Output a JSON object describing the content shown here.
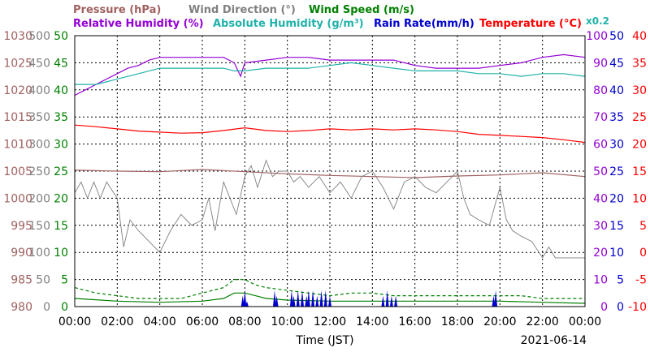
{
  "chart_data": {
    "type": "line",
    "xlabel": "Time (JST)",
    "date": "2021-06-14",
    "x_ticks": [
      "00:00",
      "02:00",
      "04:00",
      "06:00",
      "08:00",
      "10:00",
      "12:00",
      "14:00",
      "16:00",
      "18:00",
      "20:00",
      "22:00",
      "00:00"
    ],
    "axes": {
      "pressure": {
        "label": "Pressure (hPa)",
        "color": "#a06060",
        "range": [
          980,
          1030
        ],
        "ticks": [
          "980",
          "985",
          "990",
          "995",
          "1000",
          "1005",
          "1010",
          "1015",
          "1020",
          "1025",
          "1030"
        ]
      },
      "wind_direction": {
        "label": "Wind Direction (°)",
        "color": "#808080",
        "range": [
          0,
          500
        ],
        "ticks": [
          "0",
          "50",
          "100",
          "150",
          "200",
          "250",
          "300",
          "350",
          "400",
          "450",
          "500"
        ]
      },
      "wind_speed": {
        "label": "Wind Speed (m/s)",
        "color": "#008000",
        "range": [
          0,
          50
        ],
        "ticks": [
          "0",
          "5",
          "10",
          "15",
          "20",
          "25",
          "30",
          "35",
          "40",
          "45",
          "50"
        ]
      },
      "humidity": {
        "label": "Relative Humidity (%)",
        "color": "#9400d3",
        "range": [
          0,
          100
        ],
        "ticks": [
          "0",
          "10",
          "20",
          "30",
          "40",
          "50",
          "60",
          "70",
          "80",
          "90",
          "100"
        ]
      },
      "abs_humidity": {
        "label": "Absolute Humidity (g/m³)",
        "color": "#20b2aa",
        "scale_note": "x0.2"
      },
      "rain_rate": {
        "label": "Rain Rate(mm/h)",
        "color": "#0000cd",
        "range": [
          0,
          50
        ],
        "ticks": [
          "0",
          "5",
          "10",
          "15",
          "20",
          "25",
          "30",
          "35",
          "40",
          "45",
          "50"
        ]
      },
      "temperature": {
        "label": "Temperature (°C)",
        "color": "#ff0000",
        "range": [
          -10,
          40
        ],
        "ticks": [
          "-10",
          "-5",
          "0",
          "5",
          "10",
          "15",
          "20",
          "25",
          "30",
          "35",
          "40"
        ]
      }
    },
    "series": [
      {
        "name": "Relative Humidity",
        "axis": "humidity",
        "color": "#9400d3",
        "x": [
          0,
          0.5,
          1,
          1.5,
          2,
          2.5,
          3,
          3.5,
          4,
          5,
          6,
          7,
          7.5,
          7.8,
          8,
          9,
          10,
          11,
          12,
          13,
          14,
          15,
          16,
          17,
          18,
          19,
          20,
          21,
          22,
          23,
          24
        ],
        "y": [
          78,
          80,
          82,
          84,
          86,
          88,
          89,
          91,
          92,
          92,
          92,
          92,
          90,
          85,
          90,
          91,
          92,
          92,
          91,
          91,
          91,
          91,
          89,
          88,
          88,
          88,
          89,
          90,
          92,
          93,
          92
        ]
      },
      {
        "name": "Absolute Humidity",
        "axis": "humidity",
        "color": "#20b2aa",
        "x": [
          0,
          1,
          2,
          3,
          4,
          5,
          6,
          7,
          7.5,
          8,
          9,
          10,
          11,
          12,
          13,
          14,
          15,
          16,
          17,
          18,
          19,
          20,
          21,
          22,
          23,
          24
        ],
        "y": [
          82,
          82,
          84,
          86,
          88,
          88,
          88,
          88,
          87,
          87,
          88,
          88,
          88,
          89,
          90,
          89,
          88,
          87,
          87,
          87,
          86,
          86,
          85,
          86,
          86,
          85
        ]
      },
      {
        "name": "Temperature",
        "axis": "temperature",
        "color": "#ff0000",
        "x": [
          0,
          1,
          2,
          3,
          4,
          5,
          6,
          7,
          8,
          9,
          10,
          11,
          12,
          13,
          14,
          15,
          16,
          17,
          18,
          19,
          20,
          21,
          22,
          23,
          24
        ],
        "y": [
          23.5,
          23.2,
          22.8,
          22.4,
          22.2,
          22.0,
          22.1,
          22.5,
          23.0,
          22.5,
          22.3,
          22.5,
          22.8,
          22.6,
          22.8,
          22.6,
          22.8,
          22.6,
          22.3,
          21.8,
          21.6,
          21.4,
          21.2,
          20.8,
          20.3
        ]
      },
      {
        "name": "Pressure",
        "axis": "pressure",
        "color": "#a06060",
        "x": [
          0,
          2,
          4,
          6,
          7,
          8,
          10,
          12,
          14,
          16,
          18,
          20,
          22,
          24
        ],
        "y": [
          1005.2,
          1005,
          1004.9,
          1005.3,
          1005.1,
          1004.9,
          1004.5,
          1004.2,
          1004.0,
          1003.8,
          1004.1,
          1004.3,
          1004.7,
          1004.0
        ]
      },
      {
        "name": "Wind Direction",
        "axis": "wind_direction",
        "color": "#808080",
        "x": [
          0,
          0.3,
          0.6,
          0.9,
          1.2,
          1.5,
          2,
          2.3,
          2.6,
          3,
          3.5,
          4,
          4.5,
          5,
          5.5,
          6,
          6.3,
          6.6,
          7,
          7.3,
          7.6,
          8,
          8.3,
          8.6,
          9,
          9.3,
          9.6,
          10,
          10.3,
          10.6,
          11,
          11.5,
          12,
          12.5,
          13,
          13.5,
          14,
          14.5,
          15,
          15.5,
          16,
          16.5,
          17,
          17.5,
          18,
          18.3,
          18.6,
          19,
          19.5,
          20,
          20.3,
          20.6,
          21,
          21.5,
          22,
          22.3,
          22.6,
          23,
          23.5,
          24
        ],
        "y": [
          210,
          230,
          200,
          230,
          200,
          230,
          200,
          110,
          160,
          140,
          120,
          100,
          140,
          170,
          150,
          160,
          200,
          140,
          230,
          200,
          170,
          240,
          260,
          220,
          270,
          240,
          250,
          250,
          230,
          240,
          220,
          240,
          210,
          230,
          200,
          240,
          250,
          220,
          180,
          230,
          240,
          220,
          210,
          230,
          250,
          200,
          170,
          160,
          150,
          220,
          160,
          140,
          130,
          120,
          90,
          110,
          90,
          90,
          90,
          90
        ]
      },
      {
        "name": "Wind Speed max",
        "axis": "wind_speed",
        "color": "#008000",
        "x": [
          0,
          1,
          2,
          3,
          4,
          5,
          6,
          7,
          7.5,
          8,
          8.5,
          9,
          10,
          11,
          12,
          13,
          14,
          15,
          16,
          17,
          18,
          19,
          20,
          21,
          22,
          23,
          24
        ],
        "y": [
          3.5,
          2.5,
          2,
          1.5,
          1.5,
          1.5,
          2.5,
          3.5,
          5,
          5,
          4,
          3.5,
          3,
          2.5,
          2,
          2.5,
          2.5,
          2,
          2,
          2,
          2,
          2,
          2,
          2,
          1.5,
          1.5,
          1.5
        ]
      },
      {
        "name": "Wind Speed avg",
        "axis": "wind_speed",
        "color": "#008000",
        "x": [
          0,
          2,
          4,
          6,
          7,
          7.5,
          8,
          8.5,
          9,
          10,
          12,
          14,
          16,
          18,
          20,
          22,
          24
        ],
        "y": [
          1.5,
          1,
          0.8,
          1,
          1.5,
          2.5,
          2.5,
          2,
          1.5,
          1.2,
          1,
          1,
          1,
          1,
          1,
          0.8,
          0.6
        ]
      },
      {
        "name": "Rain Rate",
        "axis": "rain_rate",
        "color": "#0000cd",
        "x": [
          7.9,
          8.0,
          8.1,
          9.4,
          9.5,
          10.2,
          10.3,
          10.5,
          10.7,
          10.9,
          11.0,
          11.2,
          11.4,
          11.6,
          11.8,
          12.0,
          14.5,
          14.7,
          14.9,
          15.1,
          19.7,
          19.8
        ],
        "y": [
          2,
          3,
          1,
          3,
          2,
          3,
          2,
          3,
          3,
          2,
          3,
          3,
          2,
          3,
          3,
          2,
          2,
          3,
          2,
          2,
          2,
          3
        ]
      }
    ]
  }
}
